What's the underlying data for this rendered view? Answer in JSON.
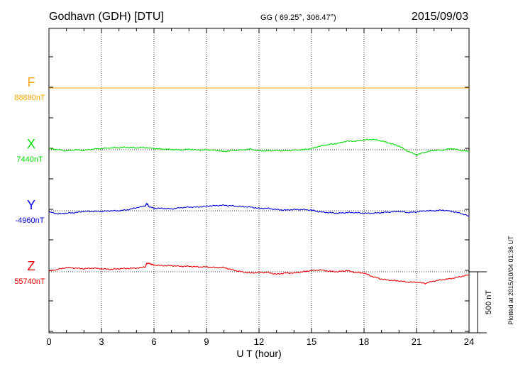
{
  "header": {
    "station": "Godhavn (GDH)  [DTU]",
    "coords": "GG ( 69.25°, 306.47°)",
    "date": "2015/09/03"
  },
  "plotted_note": "Plotted at 2015/10/04 01:36 UT",
  "scale_label": "500 nT",
  "chart_data": {
    "type": "line",
    "xlabel": "U T (hour)",
    "xlim": [
      0,
      24
    ],
    "xticks": [
      0,
      3,
      6,
      9,
      12,
      15,
      18,
      21,
      24
    ],
    "scale_nT_per_panel_unit": 500,
    "series": [
      {
        "name": "F",
        "baseline_label": "88880nT",
        "baseline_nT": 88880,
        "color": "#ffa500",
        "points": [
          [
            0,
            0
          ],
          [
            24,
            0
          ]
        ]
      },
      {
        "name": "X",
        "baseline_label": "7440nT",
        "baseline_nT": 7440,
        "color": "#00dd00",
        "points": [
          [
            0,
            8
          ],
          [
            0.5,
            2
          ],
          [
            1,
            -10
          ],
          [
            1.5,
            0
          ],
          [
            2,
            -5
          ],
          [
            2.5,
            5
          ],
          [
            3,
            10
          ],
          [
            3.5,
            15
          ],
          [
            4,
            18
          ],
          [
            4.5,
            20
          ],
          [
            5,
            16
          ],
          [
            5.5,
            18
          ],
          [
            6,
            10
          ],
          [
            6.5,
            5
          ],
          [
            7,
            3
          ],
          [
            7.5,
            -2
          ],
          [
            8,
            4
          ],
          [
            8.5,
            -3
          ],
          [
            9,
            0
          ],
          [
            9.5,
            -5
          ],
          [
            10,
            -15
          ],
          [
            10.5,
            -5
          ],
          [
            11,
            -2
          ],
          [
            11.5,
            5
          ],
          [
            12,
            -8
          ],
          [
            12.5,
            -10
          ],
          [
            13,
            -6
          ],
          [
            13.5,
            -10
          ],
          [
            14,
            -3
          ],
          [
            14.5,
            0
          ],
          [
            15,
            10
          ],
          [
            15.5,
            30
          ],
          [
            16,
            42
          ],
          [
            16.5,
            52
          ],
          [
            17,
            70
          ],
          [
            17.5,
            70
          ],
          [
            18,
            80
          ],
          [
            18.5,
            85
          ],
          [
            19,
            72
          ],
          [
            19.5,
            52
          ],
          [
            20,
            30
          ],
          [
            20.5,
            -12
          ],
          [
            21,
            -42
          ],
          [
            21.5,
            -20
          ],
          [
            22,
            -5
          ],
          [
            22.5,
            -3
          ],
          [
            23,
            10
          ],
          [
            23.5,
            -5
          ],
          [
            24,
            -15
          ]
        ]
      },
      {
        "name": "Y",
        "baseline_label": "-4960nT",
        "baseline_nT": -4960,
        "color": "#0000dd",
        "points": [
          [
            0,
            -10
          ],
          [
            0.5,
            -25
          ],
          [
            1,
            -20
          ],
          [
            1.5,
            -15
          ],
          [
            2,
            -5
          ],
          [
            2.5,
            -5
          ],
          [
            3,
            -5
          ],
          [
            3.5,
            0
          ],
          [
            4,
            0
          ],
          [
            4.5,
            8
          ],
          [
            5,
            25
          ],
          [
            5.5,
            40
          ],
          [
            5.6,
            60
          ],
          [
            5.7,
            35
          ],
          [
            6,
            20
          ],
          [
            6.5,
            20
          ],
          [
            7,
            15
          ],
          [
            7.5,
            25
          ],
          [
            8,
            30
          ],
          [
            8.5,
            30
          ],
          [
            9,
            38
          ],
          [
            9.5,
            42
          ],
          [
            10,
            45
          ],
          [
            10.5,
            40
          ],
          [
            11,
            35
          ],
          [
            11.5,
            30
          ],
          [
            12,
            20
          ],
          [
            12.5,
            20
          ],
          [
            13,
            10
          ],
          [
            13.5,
            5
          ],
          [
            14,
            10
          ],
          [
            14.5,
            10
          ],
          [
            15,
            5
          ],
          [
            15.5,
            -10
          ],
          [
            16,
            -15
          ],
          [
            16.5,
            -20
          ],
          [
            17,
            -15
          ],
          [
            17.5,
            -15
          ],
          [
            18,
            -20
          ],
          [
            18.5,
            -20
          ],
          [
            19,
            -15
          ],
          [
            19.5,
            -10
          ],
          [
            20,
            -5
          ],
          [
            20.5,
            -15
          ],
          [
            21,
            -10
          ],
          [
            21.5,
            0
          ],
          [
            22,
            0
          ],
          [
            22.5,
            5
          ],
          [
            23,
            -5
          ],
          [
            23.5,
            -20
          ],
          [
            24,
            -45
          ]
        ]
      },
      {
        "name": "Z",
        "baseline_label": "55740nT",
        "baseline_nT": 55740,
        "color": "#ee0000",
        "points": [
          [
            0,
            5
          ],
          [
            0.5,
            20
          ],
          [
            1,
            35
          ],
          [
            1.5,
            30
          ],
          [
            2,
            25
          ],
          [
            2.5,
            30
          ],
          [
            3,
            25
          ],
          [
            3.5,
            20
          ],
          [
            4,
            25
          ],
          [
            4.5,
            28
          ],
          [
            5,
            30
          ],
          [
            5.5,
            40
          ],
          [
            5.6,
            72
          ],
          [
            5.8,
            65
          ],
          [
            6,
            55
          ],
          [
            6.5,
            50
          ],
          [
            7,
            50
          ],
          [
            7.5,
            45
          ],
          [
            8,
            45
          ],
          [
            8.5,
            40
          ],
          [
            9,
            40
          ],
          [
            9.5,
            35
          ],
          [
            10,
            35
          ],
          [
            10.5,
            15
          ],
          [
            11,
            0
          ],
          [
            11.5,
            -10
          ],
          [
            12,
            -5
          ],
          [
            12.5,
            -5
          ],
          [
            13,
            -20
          ],
          [
            13.5,
            -10
          ],
          [
            14,
            -10
          ],
          [
            14.5,
            0
          ],
          [
            15,
            10
          ],
          [
            15.5,
            15
          ],
          [
            16,
            5
          ],
          [
            16.5,
            0
          ],
          [
            17,
            10
          ],
          [
            17.5,
            -5
          ],
          [
            18,
            -10
          ],
          [
            18.5,
            -40
          ],
          [
            19,
            -60
          ],
          [
            19.5,
            -70
          ],
          [
            20,
            -75
          ],
          [
            20.5,
            -85
          ],
          [
            21,
            -85
          ],
          [
            21.5,
            -95
          ],
          [
            22,
            -75
          ],
          [
            22.5,
            -65
          ],
          [
            23,
            -55
          ],
          [
            23.5,
            -40
          ],
          [
            24,
            -25
          ]
        ]
      }
    ]
  }
}
